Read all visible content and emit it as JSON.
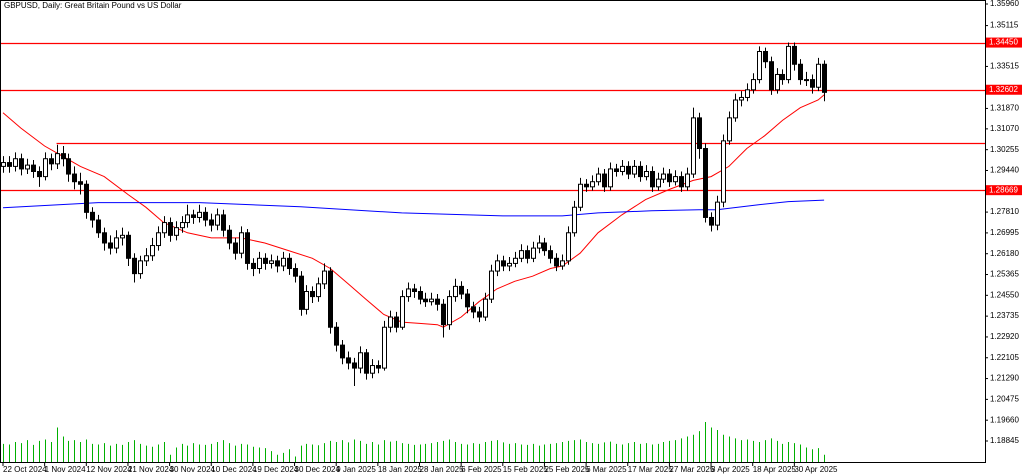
{
  "chart_data": {
    "type": "candlestick",
    "title": "GBPUSD, Daily:  Great Britain Pound vs US Dollar",
    "categories": [
      "22 Oct 2024",
      null,
      null,
      null,
      null,
      null,
      null,
      "1 Nov 2024",
      null,
      null,
      null,
      null,
      null,
      null,
      "12 Nov 2024",
      null,
      null,
      null,
      null,
      null,
      null,
      "21 Nov 2024",
      null,
      null,
      null,
      null,
      null,
      null,
      "30 Nov 2024",
      null,
      null,
      null,
      null,
      null,
      null,
      "10 Dec 2024",
      null,
      null,
      null,
      null,
      null,
      null,
      "19 Dec 2024",
      null,
      null,
      null,
      null,
      null,
      null,
      "30 Dec 2024",
      null,
      null,
      null,
      null,
      null,
      null,
      "9 Jan 2025",
      null,
      null,
      null,
      null,
      null,
      null,
      "18 Jan 2025",
      null,
      null,
      null,
      null,
      null,
      null,
      "28 Jan 2025",
      null,
      null,
      null,
      null,
      null,
      null,
      "6 Feb 2025",
      null,
      null,
      null,
      null,
      null,
      null,
      "15 Feb 2025",
      null,
      null,
      null,
      null,
      null,
      null,
      "25 Feb 2025",
      null,
      null,
      null,
      null,
      null,
      null,
      "6 Mar 2025",
      null,
      null,
      null,
      null,
      null,
      null,
      "17 Mar 2025",
      null,
      null,
      null,
      null,
      null,
      null,
      "27 Mar 2025",
      null,
      null,
      null,
      null,
      null,
      null,
      "8 Apr 2025",
      null,
      null,
      null,
      null,
      null,
      null,
      "18 Apr 2025",
      null,
      null,
      null,
      null,
      null,
      null,
      "30 Apr 2025",
      null,
      null,
      null,
      null,
      null
    ],
    "open": [
      1.296,
      1.2975,
      1.296,
      1.299,
      1.295,
      1.2965,
      1.294,
      1.292,
      1.299,
      1.297,
      1.301,
      1.299,
      1.293,
      1.29,
      1.289,
      1.278,
      1.275,
      1.27,
      1.266,
      1.264,
      1.268,
      1.269,
      1.26,
      1.254,
      1.259,
      1.261,
      1.265,
      1.27,
      1.274,
      1.269,
      1.272,
      1.274,
      1.277,
      1.276,
      1.278,
      1.275,
      1.273,
      1.277,
      1.271,
      1.266,
      1.262,
      1.27,
      1.258,
      1.256,
      1.26,
      1.258,
      1.259,
      1.257,
      1.26,
      1.256,
      1.253,
      1.24,
      1.247,
      1.245,
      1.25,
      1.255,
      1.233,
      1.226,
      1.221,
      1.219,
      1.217,
      1.223,
      1.215,
      1.218,
      1.217,
      1.233,
      1.237,
      1.233,
      1.245,
      1.248,
      1.247,
      1.244,
      1.243,
      1.244,
      1.242,
      1.234,
      1.245,
      1.249,
      1.246,
      1.241,
      1.239,
      1.237,
      1.244,
      1.255,
      1.259,
      1.257,
      1.258,
      1.26,
      1.263,
      1.26,
      1.264,
      1.266,
      1.263,
      1.26,
      1.257,
      1.259,
      1.27,
      1.28,
      1.289,
      1.288,
      1.29,
      1.293,
      1.288,
      1.295,
      1.294,
      1.296,
      1.293,
      1.296,
      1.292,
      1.294,
      1.288,
      1.291,
      1.293,
      1.29,
      1.292,
      1.288,
      1.293,
      1.315,
      1.303,
      1.276,
      1.273,
      1.282,
      1.306,
      1.315,
      1.322,
      1.323,
      1.326,
      1.33,
      1.341,
      1.337,
      1.326,
      1.332,
      1.33,
      1.343,
      1.336,
      1.33,
      1.33,
      1.327,
      1.336
    ],
    "high": [
      1.3,
      1.3,
      1.3015,
      1.301,
      1.299,
      1.2985,
      1.296,
      1.3015,
      1.301,
      1.3045,
      1.304,
      1.301,
      1.296,
      1.2935,
      1.2905,
      1.28,
      1.277,
      1.272,
      1.269,
      1.271,
      1.272,
      1.2705,
      1.262,
      1.261,
      1.264,
      1.268,
      1.2725,
      1.2765,
      1.276,
      1.2745,
      1.2765,
      1.281,
      1.279,
      1.281,
      1.28,
      1.2775,
      1.2795,
      1.279,
      1.273,
      1.268,
      1.2725,
      1.2715,
      1.26,
      1.2625,
      1.262,
      1.2615,
      1.261,
      1.2625,
      1.262,
      1.258,
      1.255,
      1.2495,
      1.249,
      1.2525,
      1.258,
      1.2565,
      1.235,
      1.228,
      1.2235,
      1.221,
      1.2255,
      1.2245,
      1.2205,
      1.22,
      1.2355,
      1.2395,
      1.239,
      1.2475,
      1.2505,
      1.25,
      1.249,
      1.2465,
      1.2465,
      1.246,
      1.244,
      1.2475,
      1.252,
      1.251,
      1.248,
      1.243,
      1.241,
      1.2465,
      1.2575,
      1.2615,
      1.261,
      1.2605,
      1.2625,
      1.2655,
      1.265,
      1.2665,
      1.269,
      1.268,
      1.265,
      1.262,
      1.2615,
      1.2725,
      1.2825,
      1.2915,
      1.291,
      1.2925,
      1.2955,
      1.295,
      1.2975,
      1.297,
      1.2985,
      1.298,
      1.2985,
      1.298,
      1.2965,
      1.296,
      1.2935,
      1.2955,
      1.295,
      1.2945,
      1.294,
      1.2955,
      1.319,
      1.317,
      1.305,
      1.278,
      1.2845,
      1.3085,
      1.3175,
      1.3245,
      1.3255,
      1.3285,
      1.3325,
      1.343,
      1.3425,
      1.339,
      1.3345,
      1.334,
      1.3445,
      1.3445,
      1.338,
      1.333,
      1.332,
      1.3385,
      1.3375
    ],
    "low": [
      1.2935,
      1.2935,
      1.294,
      1.2925,
      1.293,
      1.2915,
      1.288,
      1.2905,
      1.2945,
      1.295,
      1.296,
      1.29,
      1.287,
      1.285,
      1.2755,
      1.272,
      1.268,
      1.263,
      1.2615,
      1.262,
      1.265,
      1.257,
      1.2505,
      1.252,
      1.257,
      1.259,
      1.263,
      1.268,
      1.2665,
      1.267,
      1.27,
      1.272,
      1.2735,
      1.274,
      1.2725,
      1.2705,
      1.271,
      1.2685,
      1.2635,
      1.2595,
      1.26,
      1.2555,
      1.253,
      1.254,
      1.2555,
      1.256,
      1.2545,
      1.255,
      1.2535,
      1.2505,
      1.2375,
      1.238,
      1.2425,
      1.243,
      1.248,
      1.2305,
      1.2235,
      1.2185,
      1.2165,
      1.21,
      1.215,
      1.2125,
      1.213,
      1.215,
      1.216,
      1.231,
      1.231,
      1.232,
      1.243,
      1.2445,
      1.242,
      1.241,
      1.2415,
      1.2395,
      1.229,
      1.232,
      1.243,
      1.244,
      1.2385,
      1.2365,
      1.235,
      1.2355,
      1.2425,
      1.253,
      1.255,
      1.255,
      1.2565,
      1.2585,
      1.258,
      1.2585,
      1.262,
      1.261,
      1.258,
      1.255,
      1.2555,
      1.2575,
      1.2685,
      1.2785,
      1.286,
      1.2865,
      1.2885,
      1.286,
      1.2865,
      1.292,
      1.2925,
      1.291,
      1.2915,
      1.29,
      1.2905,
      1.286,
      1.2865,
      1.2895,
      1.288,
      1.2885,
      1.286,
      1.2865,
      1.2915,
      1.299,
      1.274,
      1.2705,
      1.271,
      1.28,
      1.3045,
      1.3135,
      1.3195,
      1.3215,
      1.3245,
      1.3285,
      1.3345,
      1.324,
      1.3245,
      1.328,
      1.3285,
      1.3335,
      1.328,
      1.3275,
      1.3245,
      1.3255,
      1.3215
    ],
    "close": [
      1.2975,
      1.296,
      1.299,
      1.295,
      1.2965,
      1.294,
      1.292,
      1.299,
      1.297,
      1.301,
      1.299,
      1.293,
      1.29,
      1.289,
      1.278,
      1.275,
      1.27,
      1.266,
      1.264,
      1.268,
      1.269,
      1.26,
      1.254,
      1.259,
      1.261,
      1.265,
      1.27,
      1.274,
      1.269,
      1.272,
      1.274,
      1.277,
      1.276,
      1.278,
      1.275,
      1.273,
      1.277,
      1.271,
      1.266,
      1.262,
      1.27,
      1.258,
      1.256,
      1.26,
      1.258,
      1.259,
      1.257,
      1.26,
      1.256,
      1.253,
      1.24,
      1.247,
      1.245,
      1.25,
      1.255,
      1.233,
      1.226,
      1.221,
      1.219,
      1.217,
      1.223,
      1.215,
      1.218,
      1.217,
      1.233,
      1.237,
      1.233,
      1.245,
      1.248,
      1.247,
      1.244,
      1.243,
      1.244,
      1.242,
      1.234,
      1.245,
      1.249,
      1.246,
      1.241,
      1.239,
      1.237,
      1.244,
      1.255,
      1.259,
      1.257,
      1.258,
      1.26,
      1.263,
      1.26,
      1.264,
      1.266,
      1.263,
      1.26,
      1.257,
      1.259,
      1.27,
      1.28,
      1.289,
      1.288,
      1.29,
      1.293,
      1.288,
      1.295,
      1.294,
      1.296,
      1.293,
      1.296,
      1.292,
      1.294,
      1.288,
      1.291,
      1.293,
      1.29,
      1.292,
      1.288,
      1.293,
      1.315,
      1.303,
      1.276,
      1.273,
      1.282,
      1.306,
      1.315,
      1.322,
      1.323,
      1.326,
      1.33,
      1.341,
      1.337,
      1.326,
      1.332,
      1.33,
      1.343,
      1.336,
      1.33,
      1.33,
      1.327,
      1.336,
      1.325
    ],
    "volume": [
      50,
      48,
      55,
      52,
      60,
      47,
      58,
      62,
      55,
      95,
      70,
      58,
      60,
      55,
      62,
      50,
      48,
      52,
      45,
      50,
      47,
      55,
      60,
      50,
      45,
      42,
      48,
      55,
      20,
      40,
      50,
      45,
      52,
      48,
      47,
      50,
      55,
      60,
      52,
      45,
      50,
      48,
      42,
      40,
      38,
      30,
      20,
      25,
      35,
      15,
      45,
      50,
      48,
      46,
      52,
      58,
      55,
      60,
      54,
      62,
      58,
      50,
      55,
      48,
      60,
      56,
      58,
      52,
      50,
      47,
      48,
      50,
      52,
      55,
      58,
      62,
      55,
      50,
      48,
      52,
      50,
      55,
      58,
      60,
      54,
      50,
      52,
      48,
      47,
      50,
      45,
      48,
      50,
      52,
      55,
      58,
      60,
      62,
      55,
      52,
      50,
      54,
      56,
      50,
      48,
      52,
      55,
      50,
      52,
      48,
      50,
      55,
      58,
      60,
      65,
      70,
      75,
      85,
      110,
      95,
      88,
      75,
      70,
      65,
      60,
      62,
      58,
      55,
      60,
      65,
      58,
      50,
      55,
      52,
      48,
      40,
      35,
      38,
      20
    ],
    "bull_color": "#ffffff",
    "bear_color": "#000000",
    "volume_color": "#00b000",
    "lines": [
      {
        "color": "#ff0000",
        "x": [
          0,
          3,
          7,
          10,
          13,
          17,
          21,
          24,
          27,
          31,
          35,
          40,
          44,
          48,
          52,
          55,
          58,
          61,
          64,
          67,
          70,
          73,
          74,
          77,
          80,
          83,
          86,
          89,
          92,
          94,
          97,
          100,
          104,
          108,
          112,
          116,
          119,
          122,
          125,
          128,
          131,
          134,
          137,
          138
        ],
        "values": [
          1.317,
          1.311,
          1.304,
          1.3,
          1.296,
          1.292,
          1.285,
          1.28,
          1.274,
          1.27,
          1.268,
          1.268,
          1.266,
          1.263,
          1.26,
          1.256,
          1.25,
          1.244,
          1.238,
          1.235,
          1.2345,
          1.234,
          1.233,
          1.237,
          1.243,
          1.248,
          1.251,
          1.253,
          1.256,
          1.257,
          1.262,
          1.27,
          1.277,
          1.283,
          1.287,
          1.2905,
          1.292,
          1.296,
          1.303,
          1.308,
          1.314,
          1.319,
          1.322,
          1.324
        ]
      },
      {
        "color": "#0000ff",
        "x": [
          0,
          16,
          33,
          50,
          67,
          84,
          94,
          100,
          109,
          117,
          120,
          127,
          132,
          138
        ],
        "values": [
          1.2798,
          1.2818,
          1.2818,
          1.2802,
          1.2778,
          1.2766,
          1.2766,
          1.2778,
          1.2786,
          1.279,
          1.279,
          1.281,
          1.2822,
          1.2828
        ]
      }
    ],
    "levels": [
      {
        "value": 1.3445,
        "label": "1.34450"
      },
      {
        "value": 1.32602,
        "label": "1.32602"
      },
      {
        "value": 1.3052
      },
      {
        "value": 1.28669,
        "label": "1.28669"
      }
    ],
    "level_color": "#ff0000",
    "ylim": [
      1.18022,
      1.36117
    ],
    "yticks": [
      {
        "value": 1.3596,
        "label": "1.35960"
      },
      {
        "value": 1.35115,
        "label": "1.35115"
      },
      {
        "value": 1.33515,
        "label": "1.33515"
      },
      {
        "value": 1.3187,
        "label": "1.31870"
      },
      {
        "value": 1.3107,
        "label": "1.31070"
      },
      {
        "value": 1.30255,
        "label": "1.30255"
      },
      {
        "value": 1.2944,
        "label": "1.29440"
      },
      {
        "value": 1.2781,
        "label": "1.27810"
      },
      {
        "value": 1.26995,
        "label": "1.26995"
      },
      {
        "value": 1.2618,
        "label": "1.26180"
      },
      {
        "value": 1.25365,
        "label": "1.25365"
      },
      {
        "value": 1.2455,
        "label": "1.24550"
      },
      {
        "value": 1.23735,
        "label": "1.23735"
      },
      {
        "value": 1.2292,
        "label": "1.22920"
      },
      {
        "value": 1.22105,
        "label": "1.22105"
      },
      {
        "value": 1.2129,
        "label": "1.21290"
      },
      {
        "value": 1.20475,
        "label": "1.20475"
      },
      {
        "value": 1.1966,
        "label": "1.19660"
      },
      {
        "value": 1.18845,
        "label": "1.18845"
      }
    ],
    "grid": false
  }
}
